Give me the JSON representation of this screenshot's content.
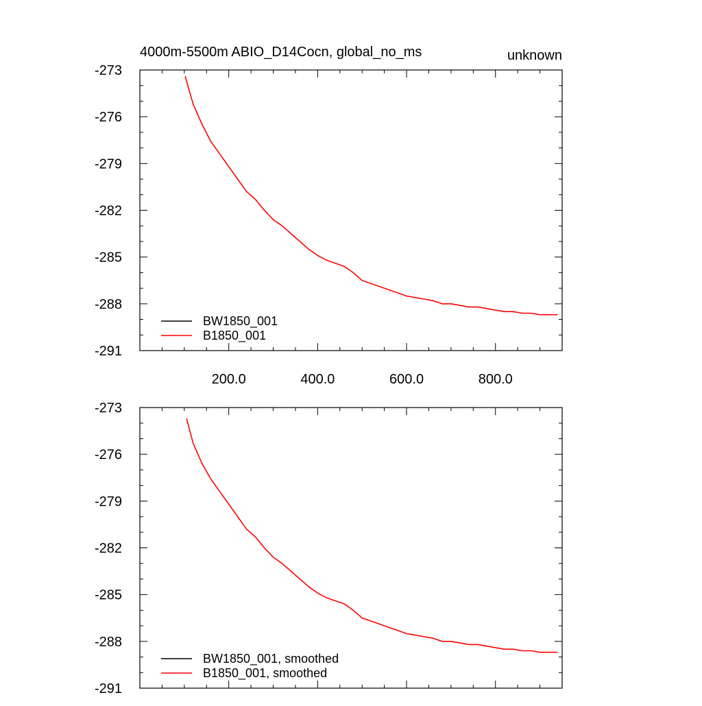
{
  "chart_data": [
    {
      "type": "line",
      "title_left": "4000m-5500m ABIO_D14Cocn, global_no_ms",
      "title_right": "unknown",
      "xlim": [
        0,
        950
      ],
      "ylim": [
        -291,
        -273
      ],
      "x_ticks": [
        200,
        400,
        600,
        800
      ],
      "x_tick_labels": [
        "200.0",
        "400.0",
        "600.0",
        "800.0"
      ],
      "y_ticks": [
        -273,
        -276,
        -279,
        -282,
        -285,
        -288,
        -291
      ],
      "y_tick_labels": [
        "-273",
        "-276",
        "-279",
        "-282",
        "-285",
        "-288",
        "-291"
      ],
      "grid": false,
      "legend_position": "bottom-left",
      "series": [
        {
          "name": "BW1850_001",
          "color": "#000000",
          "x": [],
          "y": []
        },
        {
          "name": "B1850_001",
          "color": "#ff0000",
          "x": [
            102,
            120,
            140,
            160,
            180,
            200,
            220,
            240,
            260,
            280,
            300,
            320,
            340,
            360,
            380,
            400,
            420,
            440,
            460,
            480,
            500,
            520,
            540,
            560,
            580,
            600,
            620,
            640,
            660,
            680,
            700,
            720,
            740,
            760,
            780,
            800,
            820,
            840,
            860,
            880,
            900,
            920,
            940
          ],
          "y": [
            -273.4,
            -275.2,
            -276.5,
            -277.6,
            -278.4,
            -279.2,
            -280.0,
            -280.8,
            -281.3,
            -282.0,
            -282.6,
            -283.0,
            -283.5,
            -284.0,
            -284.5,
            -284.9,
            -285.2,
            -285.4,
            -285.6,
            -286.0,
            -286.5,
            -286.7,
            -286.9,
            -287.1,
            -287.3,
            -287.5,
            -287.6,
            -287.7,
            -287.8,
            -288.0,
            -288.0,
            -288.1,
            -288.2,
            -288.2,
            -288.3,
            -288.4,
            -288.5,
            -288.5,
            -288.6,
            -288.6,
            -288.7,
            -288.7,
            -288.7
          ]
        }
      ]
    },
    {
      "type": "line",
      "xlim": [
        0,
        950
      ],
      "ylim": [
        -291,
        -273
      ],
      "x_ticks": [
        200,
        400,
        600,
        800
      ],
      "x_tick_labels": [],
      "y_ticks": [
        -273,
        -276,
        -279,
        -282,
        -285,
        -288,
        -291
      ],
      "y_tick_labels": [
        "-273",
        "-276",
        "-279",
        "-282",
        "-285",
        "-288",
        "-291"
      ],
      "grid": false,
      "legend_position": "bottom-left",
      "series": [
        {
          "name": "BW1850_001, smoothed",
          "color": "#000000",
          "x": [],
          "y": []
        },
        {
          "name": "B1850_001, smoothed",
          "color": "#ff0000",
          "x": [
            105,
            120,
            140,
            160,
            180,
            200,
            220,
            240,
            260,
            280,
            300,
            320,
            340,
            360,
            380,
            400,
            420,
            440,
            460,
            480,
            500,
            520,
            540,
            560,
            580,
            600,
            620,
            640,
            660,
            680,
            700,
            720,
            740,
            760,
            780,
            800,
            820,
            840,
            860,
            880,
            900,
            920,
            940
          ],
          "y": [
            -273.7,
            -275.3,
            -276.6,
            -277.6,
            -278.4,
            -279.2,
            -280.0,
            -280.8,
            -281.3,
            -282.0,
            -282.6,
            -283.0,
            -283.5,
            -284.0,
            -284.5,
            -284.9,
            -285.2,
            -285.4,
            -285.6,
            -286.0,
            -286.5,
            -286.7,
            -286.9,
            -287.1,
            -287.3,
            -287.5,
            -287.6,
            -287.7,
            -287.8,
            -288.0,
            -288.0,
            -288.1,
            -288.2,
            -288.2,
            -288.3,
            -288.4,
            -288.5,
            -288.5,
            -288.6,
            -288.6,
            -288.7,
            -288.7,
            -288.7
          ]
        }
      ]
    }
  ]
}
